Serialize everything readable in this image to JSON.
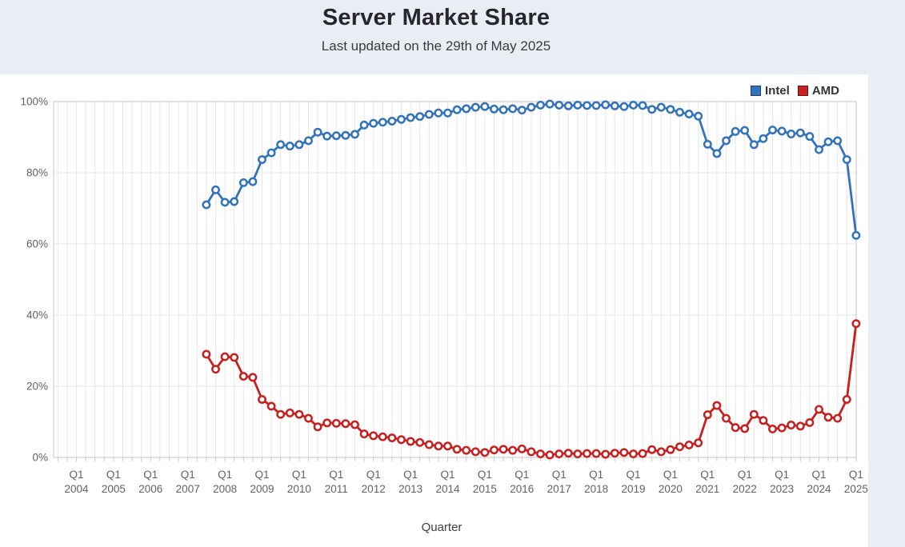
{
  "page": {
    "title": "Server Market Share",
    "subtitle": "Last updated on the 29th of May 2025"
  },
  "colors": {
    "intel_blue": "#3273bb",
    "amd_red": "#c81f1f",
    "page_background": "#e9eef5",
    "card_background": "#ffffff",
    "grid_line": "#e7e7e7",
    "plot_border": "#c6c6c6",
    "tick_text": "#5f6368"
  },
  "chart_data": {
    "type": "line",
    "title": "Server Market Share",
    "subtitle": "Last updated on the 29th of May 2025",
    "xlabel": "Quarter",
    "ylabel": "",
    "ylim": [
      0,
      100
    ],
    "grid": true,
    "legend_position": "top-right",
    "y_ticks": [
      "0%",
      "20%",
      "40%",
      "60%",
      "80%",
      "100%"
    ],
    "x_tick_prefix": "Q1",
    "x_tick_years": [
      "2004",
      "2005",
      "2006",
      "2007",
      "2008",
      "2009",
      "2010",
      "2011",
      "2012",
      "2013",
      "2014",
      "2015",
      "2016",
      "2017",
      "2018",
      "2019",
      "2020",
      "2021",
      "2022",
      "2023",
      "2024",
      "2025"
    ],
    "x_start": {
      "year": 2007,
      "quarter": 3
    },
    "x_frequency": "quarterly",
    "series": [
      {
        "name": "Intel",
        "color": "#3273bb",
        "values": [
          71.0,
          75.2,
          71.7,
          71.9,
          77.2,
          77.5,
          83.7,
          85.6,
          87.9,
          87.5,
          87.9,
          89.0,
          91.4,
          90.3,
          90.4,
          90.5,
          90.8,
          93.4,
          93.9,
          94.2,
          94.5,
          95.0,
          95.5,
          95.8,
          96.4,
          96.8,
          96.8,
          97.7,
          98.0,
          98.4,
          98.6,
          97.9,
          97.7,
          98.0,
          97.6,
          98.4,
          99.0,
          99.3,
          99.0,
          98.8,
          99.0,
          98.9,
          98.9,
          99.1,
          98.8,
          98.6,
          99.0,
          98.9,
          97.8,
          98.4,
          97.8,
          97.0,
          96.5,
          95.9,
          88.0,
          85.4,
          89.0,
          91.6,
          91.9,
          87.9,
          89.6,
          92.0,
          91.7,
          90.9,
          91.2,
          90.2,
          86.5,
          88.7,
          89.0,
          83.7,
          62.4
        ]
      },
      {
        "name": "AMD",
        "color": "#c81f1f",
        "values": [
          29.0,
          24.8,
          28.3,
          28.1,
          22.8,
          22.5,
          16.3,
          14.4,
          12.1,
          12.5,
          12.1,
          11.0,
          8.6,
          9.7,
          9.6,
          9.5,
          9.2,
          6.6,
          6.1,
          5.8,
          5.5,
          5.0,
          4.5,
          4.2,
          3.6,
          3.2,
          3.2,
          2.3,
          2.0,
          1.6,
          1.4,
          2.1,
          2.3,
          2.0,
          2.4,
          1.6,
          1.0,
          0.7,
          1.0,
          1.2,
          1.0,
          1.1,
          1.1,
          0.9,
          1.2,
          1.4,
          1.0,
          1.1,
          2.2,
          1.6,
          2.2,
          3.0,
          3.5,
          4.1,
          12.0,
          14.6,
          11.0,
          8.4,
          8.1,
          12.1,
          10.4,
          8.0,
          8.3,
          9.1,
          8.8,
          9.8,
          13.5,
          11.3,
          11.0,
          16.3,
          37.6
        ]
      }
    ]
  }
}
